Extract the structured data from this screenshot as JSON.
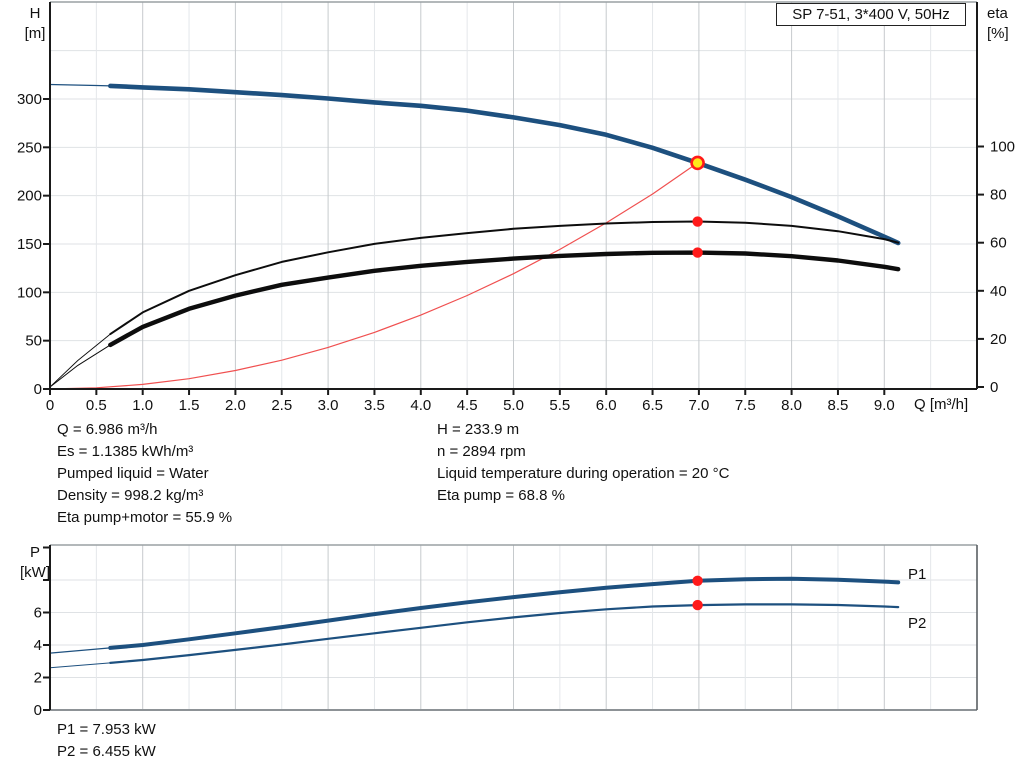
{
  "title_box": {
    "label": "SP 7-51, 3*400 V, 50Hz"
  },
  "colors": {
    "curve_blue": "#1d507f",
    "curve_black": "#0d0d0d",
    "system_curve_red": "#f05050",
    "marker_red": "#ff1a1a",
    "duty_point_yellow": "#ffe81a",
    "annotation_blue": "#2d6296",
    "grid_light": "#e4e7ea",
    "grid_dark": "#c6cacd",
    "grid_h": "#dfe2e5",
    "frame_gray": "#9aa0a4",
    "axis_black": "#1a1a1a"
  },
  "info_top": {
    "left": [
      "Q = 6.986 m³/h",
      "Es = 1.1385 kWh/m³",
      "Pumped liquid = Water",
      "Density = 998.2 kg/m³",
      "Eta pump+motor = 55.9 %"
    ],
    "right": [
      "H = 233.9 m",
      "n = 2894 rpm",
      "Liquid temperature during operation = 20 °C",
      "Eta pump = 68.8 %"
    ]
  },
  "info_power": [
    "P1 = 7.953 kW",
    "P2 = 6.455 kW"
  ],
  "chart_data": [
    {
      "type": "line",
      "title": "",
      "x": {
        "label": "Q [m³/h]",
        "min": 0,
        "max": 10,
        "ticks": [
          [
            0,
            "0"
          ],
          [
            0.5,
            "0.5"
          ],
          [
            1,
            "1.0"
          ],
          [
            1.5,
            "1.5"
          ],
          [
            2,
            "2.0"
          ],
          [
            2.5,
            "2.5"
          ],
          [
            3,
            "3.0"
          ],
          [
            3.5,
            "3.5"
          ],
          [
            4,
            "4.0"
          ],
          [
            4.5,
            "4.5"
          ],
          [
            5,
            "5.0"
          ],
          [
            5.5,
            "5.5"
          ],
          [
            6,
            "6.0"
          ],
          [
            6.5,
            "6.5"
          ],
          [
            7,
            "7.0"
          ],
          [
            7.5,
            "7.5"
          ],
          [
            8,
            "8.0"
          ],
          [
            8.5,
            "8.5"
          ],
          [
            9,
            "9.0"
          ]
        ],
        "grid": [
          0.5,
          1,
          1.5,
          2,
          2.5,
          3,
          3.5,
          4,
          4.5,
          5,
          5.5,
          6,
          6.5,
          7,
          7.5,
          8,
          8.5,
          9,
          9.5
        ]
      },
      "y_left": {
        "label": "H",
        "unit": "[m]",
        "min": 0,
        "max": 400,
        "ticks": [
          [
            0,
            "0"
          ],
          [
            50,
            "50"
          ],
          [
            100,
            "100"
          ],
          [
            150,
            "150"
          ],
          [
            200,
            "200"
          ],
          [
            250,
            "250"
          ],
          [
            300,
            "300"
          ]
        ],
        "grid": [
          50,
          100,
          150,
          200,
          250,
          300,
          350
        ]
      },
      "y_right": {
        "label": "eta",
        "unit": "[%]",
        "min": 0,
        "max": 160,
        "ticks": [
          [
            0,
            "0"
          ],
          [
            20,
            "20"
          ],
          [
            40,
            "40"
          ],
          [
            60,
            "60"
          ],
          [
            80,
            "80"
          ],
          [
            100,
            "100"
          ]
        ]
      },
      "series": [
        {
          "name": "system-curve",
          "axis": "left",
          "color_key": "system_curve_red",
          "width": 1.2,
          "intro_width": 1.2,
          "split": null,
          "points": [
            [
              0,
              0
            ],
            [
              0.5,
              1.2
            ],
            [
              1,
              4.8
            ],
            [
              1.5,
              10.7
            ],
            [
              2,
              19.1
            ],
            [
              2.5,
              29.8
            ],
            [
              3,
              43
            ],
            [
              3.5,
              58.5
            ],
            [
              4,
              76.4
            ],
            [
              4.5,
              96.7
            ],
            [
              5,
              119.3
            ],
            [
              5.5,
              144.4
            ],
            [
              6,
              171.8
            ],
            [
              6.5,
              201.7
            ],
            [
              6.986,
              233.9
            ]
          ]
        },
        {
          "name": "hq-curve",
          "axis": "left",
          "color_key": "curve_blue",
          "width": 4.6,
          "intro_width": 1.3,
          "split": 0.65,
          "points": [
            [
              0,
              315
            ],
            [
              0.5,
              314
            ],
            [
              0.65,
              313.5
            ],
            [
              1,
              312
            ],
            [
              1.5,
              310
            ],
            [
              2,
              307
            ],
            [
              2.5,
              304
            ],
            [
              3,
              300.5
            ],
            [
              3.5,
              296.5
            ],
            [
              4,
              293
            ],
            [
              4.5,
              288
            ],
            [
              5,
              281
            ],
            [
              5.5,
              273
            ],
            [
              6,
              263
            ],
            [
              6.5,
              249.5
            ],
            [
              6.986,
              233.9
            ],
            [
              7.5,
              216.5
            ],
            [
              8,
              198.5
            ],
            [
              8.5,
              178.5
            ],
            [
              9,
              157.5
            ],
            [
              9.15,
              151
            ]
          ]
        },
        {
          "name": "eta-pump-curve",
          "axis": "right",
          "color_key": "curve_black",
          "width": 2,
          "intro_width": 0.9,
          "split": 0.65,
          "points": [
            [
              0,
              0
            ],
            [
              0.3,
              11
            ],
            [
              0.65,
              22
            ],
            [
              1,
              31
            ],
            [
              1.5,
              40
            ],
            [
              2,
              46.5
            ],
            [
              2.5,
              52
            ],
            [
              3,
              56
            ],
            [
              3.5,
              59.5
            ],
            [
              4,
              62
            ],
            [
              4.5,
              64
            ],
            [
              5,
              65.8
            ],
            [
              5.5,
              67
            ],
            [
              6,
              68
            ],
            [
              6.5,
              68.6
            ],
            [
              6.986,
              68.8
            ],
            [
              7.5,
              68.3
            ],
            [
              8,
              67
            ],
            [
              8.5,
              64.8
            ],
            [
              9,
              61.5
            ],
            [
              9.15,
              60
            ]
          ]
        },
        {
          "name": "eta-pump-motor-curve",
          "axis": "right",
          "color_key": "curve_black",
          "width": 4.4,
          "intro_width": 1,
          "split": 0.65,
          "points": [
            [
              0,
              0
            ],
            [
              0.3,
              9
            ],
            [
              0.65,
              17.5
            ],
            [
              1,
              25
            ],
            [
              1.5,
              32.5
            ],
            [
              2,
              38
            ],
            [
              2.5,
              42.5
            ],
            [
              3,
              45.5
            ],
            [
              3.5,
              48.3
            ],
            [
              4,
              50.4
            ],
            [
              4.5,
              52
            ],
            [
              5,
              53.4
            ],
            [
              5.5,
              54.5
            ],
            [
              6,
              55.3
            ],
            [
              6.5,
              55.8
            ],
            [
              6.986,
              55.9
            ],
            [
              7.5,
              55.5
            ],
            [
              8,
              54.4
            ],
            [
              8.5,
              52.6
            ],
            [
              9,
              50
            ],
            [
              9.15,
              49
            ]
          ]
        }
      ],
      "markers": [
        {
          "name": "duty-point",
          "q": 6.986,
          "value": 233.9,
          "axis": "left",
          "style": "duty"
        },
        {
          "name": "eta-pump-point",
          "q": 6.986,
          "value": 68.8,
          "axis": "right",
          "style": "dot"
        },
        {
          "name": "eta-pump-motor-point",
          "q": 6.986,
          "value": 55.9,
          "axis": "right",
          "style": "dot"
        }
      ]
    },
    {
      "type": "line",
      "title": "",
      "x": {
        "label": "",
        "min": 0,
        "max": 10,
        "ticks": [],
        "grid": [
          0.5,
          1,
          1.5,
          2,
          2.5,
          3,
          3.5,
          4,
          4.5,
          5,
          5.5,
          6,
          6.5,
          7,
          7.5,
          8,
          8.5,
          9,
          9.5
        ]
      },
      "y_left": {
        "label": "P",
        "unit": "[kW]",
        "min": 0,
        "max": 10,
        "ticks": [
          [
            0,
            "0"
          ],
          [
            2,
            "2"
          ],
          [
            4,
            "4"
          ],
          [
            6,
            "6"
          ],
          [
            8,
            ""
          ],
          [
            10,
            ""
          ]
        ],
        "grid": [
          2,
          4,
          6,
          8
        ]
      },
      "series": [
        {
          "name": "p1-curve",
          "axis": "left",
          "color_key": "curve_blue",
          "width": 4,
          "intro_width": 1.2,
          "split": 0.65,
          "points": [
            [
              0,
              3.5
            ],
            [
              0.65,
              3.82
            ],
            [
              1,
              4.0
            ],
            [
              1.5,
              4.35
            ],
            [
              2,
              4.72
            ],
            [
              2.5,
              5.1
            ],
            [
              3,
              5.5
            ],
            [
              3.5,
              5.9
            ],
            [
              4,
              6.28
            ],
            [
              4.5,
              6.63
            ],
            [
              5,
              6.95
            ],
            [
              5.5,
              7.25
            ],
            [
              6,
              7.52
            ],
            [
              6.5,
              7.75
            ],
            [
              6.986,
              7.953
            ],
            [
              7.5,
              8.05
            ],
            [
              8,
              8.08
            ],
            [
              8.5,
              8.02
            ],
            [
              9,
              7.9
            ],
            [
              9.15,
              7.85
            ]
          ]
        },
        {
          "name": "p2-curve",
          "axis": "left",
          "color_key": "curve_blue",
          "width": 2.2,
          "intro_width": 1,
          "split": 0.65,
          "points": [
            [
              0,
              2.6
            ],
            [
              0.65,
              2.9
            ],
            [
              1,
              3.08
            ],
            [
              1.5,
              3.38
            ],
            [
              2,
              3.7
            ],
            [
              2.5,
              4.03
            ],
            [
              3,
              4.38
            ],
            [
              3.5,
              4.72
            ],
            [
              4,
              5.06
            ],
            [
              4.5,
              5.4
            ],
            [
              5,
              5.7
            ],
            [
              5.5,
              5.97
            ],
            [
              6,
              6.2
            ],
            [
              6.5,
              6.37
            ],
            [
              6.986,
              6.455
            ],
            [
              7.5,
              6.5
            ],
            [
              8,
              6.5
            ],
            [
              8.5,
              6.46
            ],
            [
              9,
              6.37
            ],
            [
              9.15,
              6.33
            ]
          ]
        }
      ],
      "markers": [
        {
          "name": "p1-point",
          "q": 6.986,
          "value": 7.953,
          "axis": "left",
          "style": "dot"
        },
        {
          "name": "p2-point",
          "q": 6.986,
          "value": 6.455,
          "axis": "left",
          "style": "dot"
        }
      ],
      "annotations": [
        {
          "text": "P1"
        },
        {
          "text": "P2"
        }
      ]
    }
  ]
}
